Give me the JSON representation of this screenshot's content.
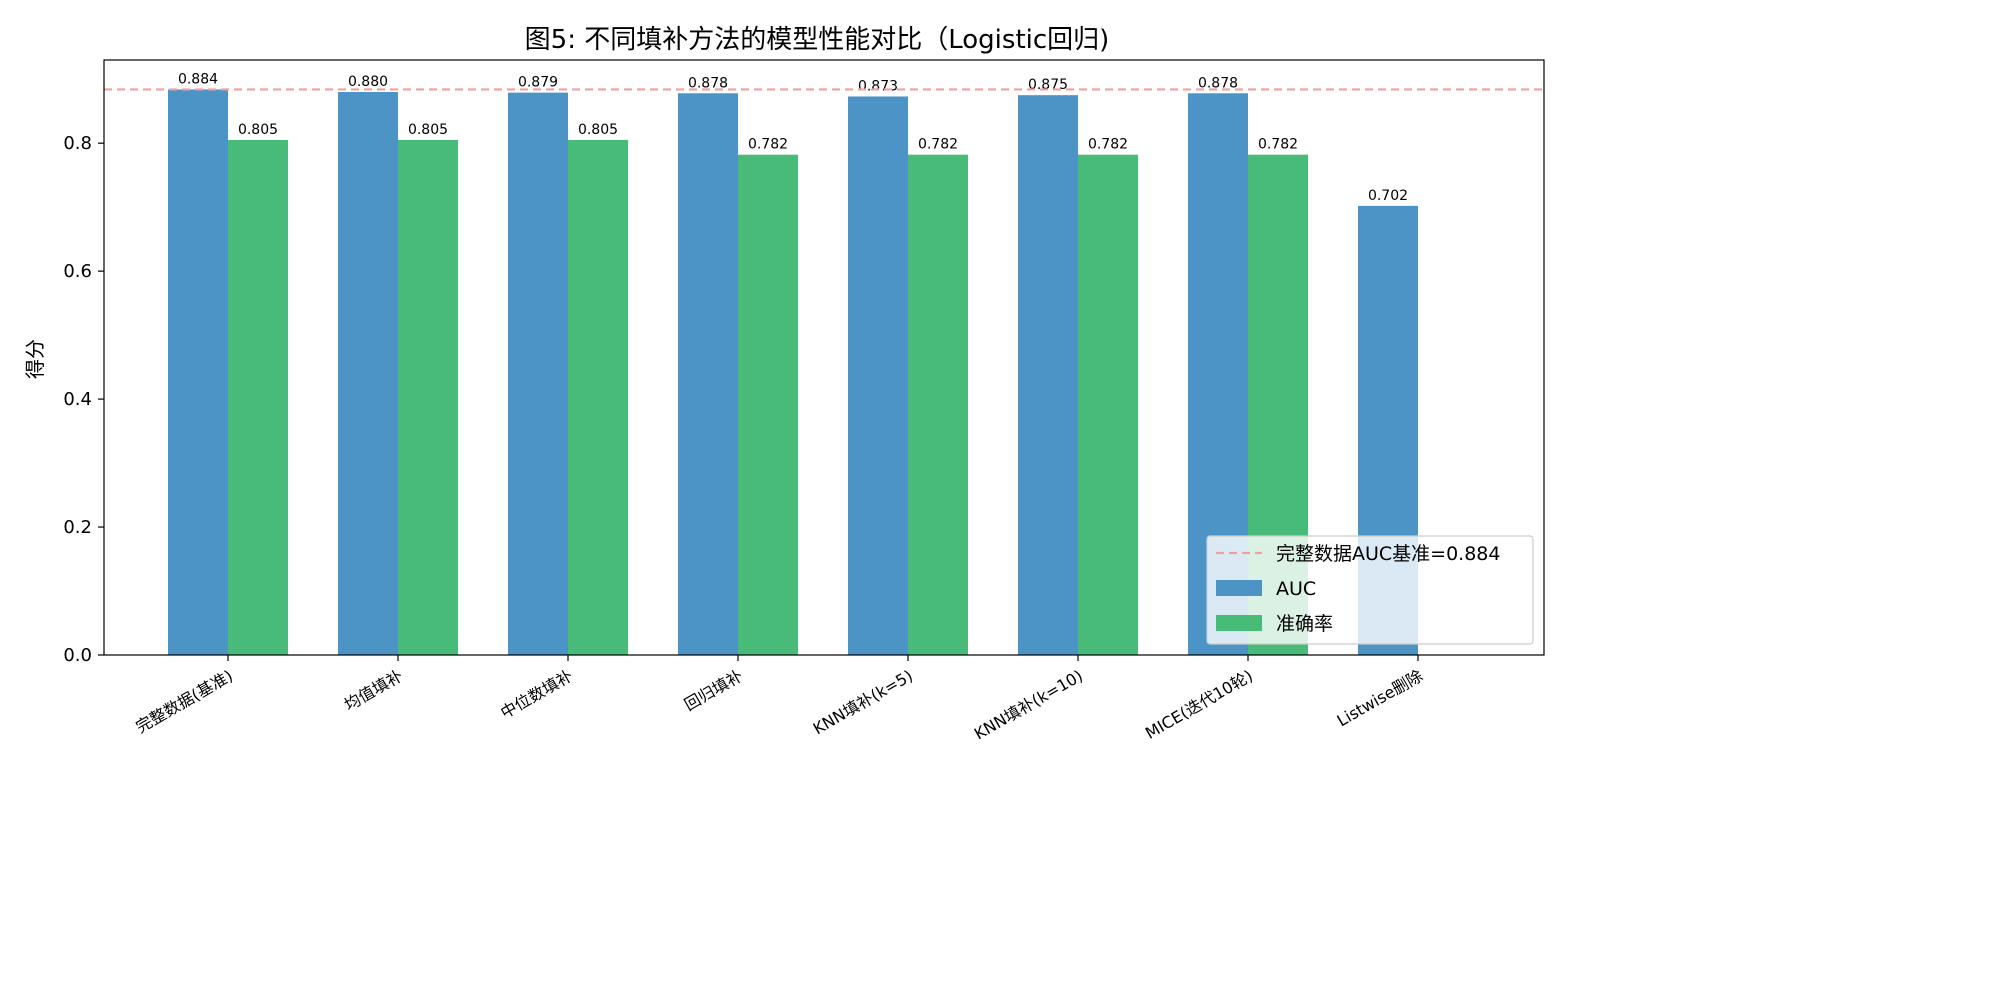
{
  "chart_data": {
    "type": "bar",
    "title": "图5: 不同填补方法的模型性能对比（Logistic回归)",
    "xlabel": "",
    "ylabel": "得分",
    "ylim": [
      0,
      0.93
    ],
    "yticks": [
      "0.0",
      "0.2",
      "0.4",
      "0.6",
      "0.8"
    ],
    "categories": [
      "完整数据(基准)",
      "均值填补",
      "中位数填补",
      "回归填补",
      "KNN填补(k=5)",
      "KNN填补(k=10)",
      "MICE(迭代10轮)",
      "Listwise删除"
    ],
    "series": [
      {
        "name": "AUC",
        "color": "#4C93C6",
        "values": [
          0.884,
          0.88,
          0.879,
          0.878,
          0.873,
          0.875,
          0.878,
          0.702
        ],
        "labels": [
          "0.884",
          "0.880",
          "0.879",
          "0.878",
          "0.873",
          "0.875",
          "0.878",
          "0.702"
        ]
      },
      {
        "name": "准确率",
        "color": "#47BB77",
        "values": [
          0.805,
          0.805,
          0.805,
          0.782,
          0.782,
          0.782,
          0.782,
          null
        ],
        "labels": [
          "0.805",
          "0.805",
          "0.805",
          "0.782",
          "0.782",
          "0.782",
          "0.782",
          ""
        ]
      }
    ],
    "reference_line": {
      "label": "完整数据AUC基准=0.884",
      "value": 0.884,
      "color": "#F0A0A0",
      "style": "dashed"
    },
    "legend_position": "lower-right",
    "grid": false
  }
}
